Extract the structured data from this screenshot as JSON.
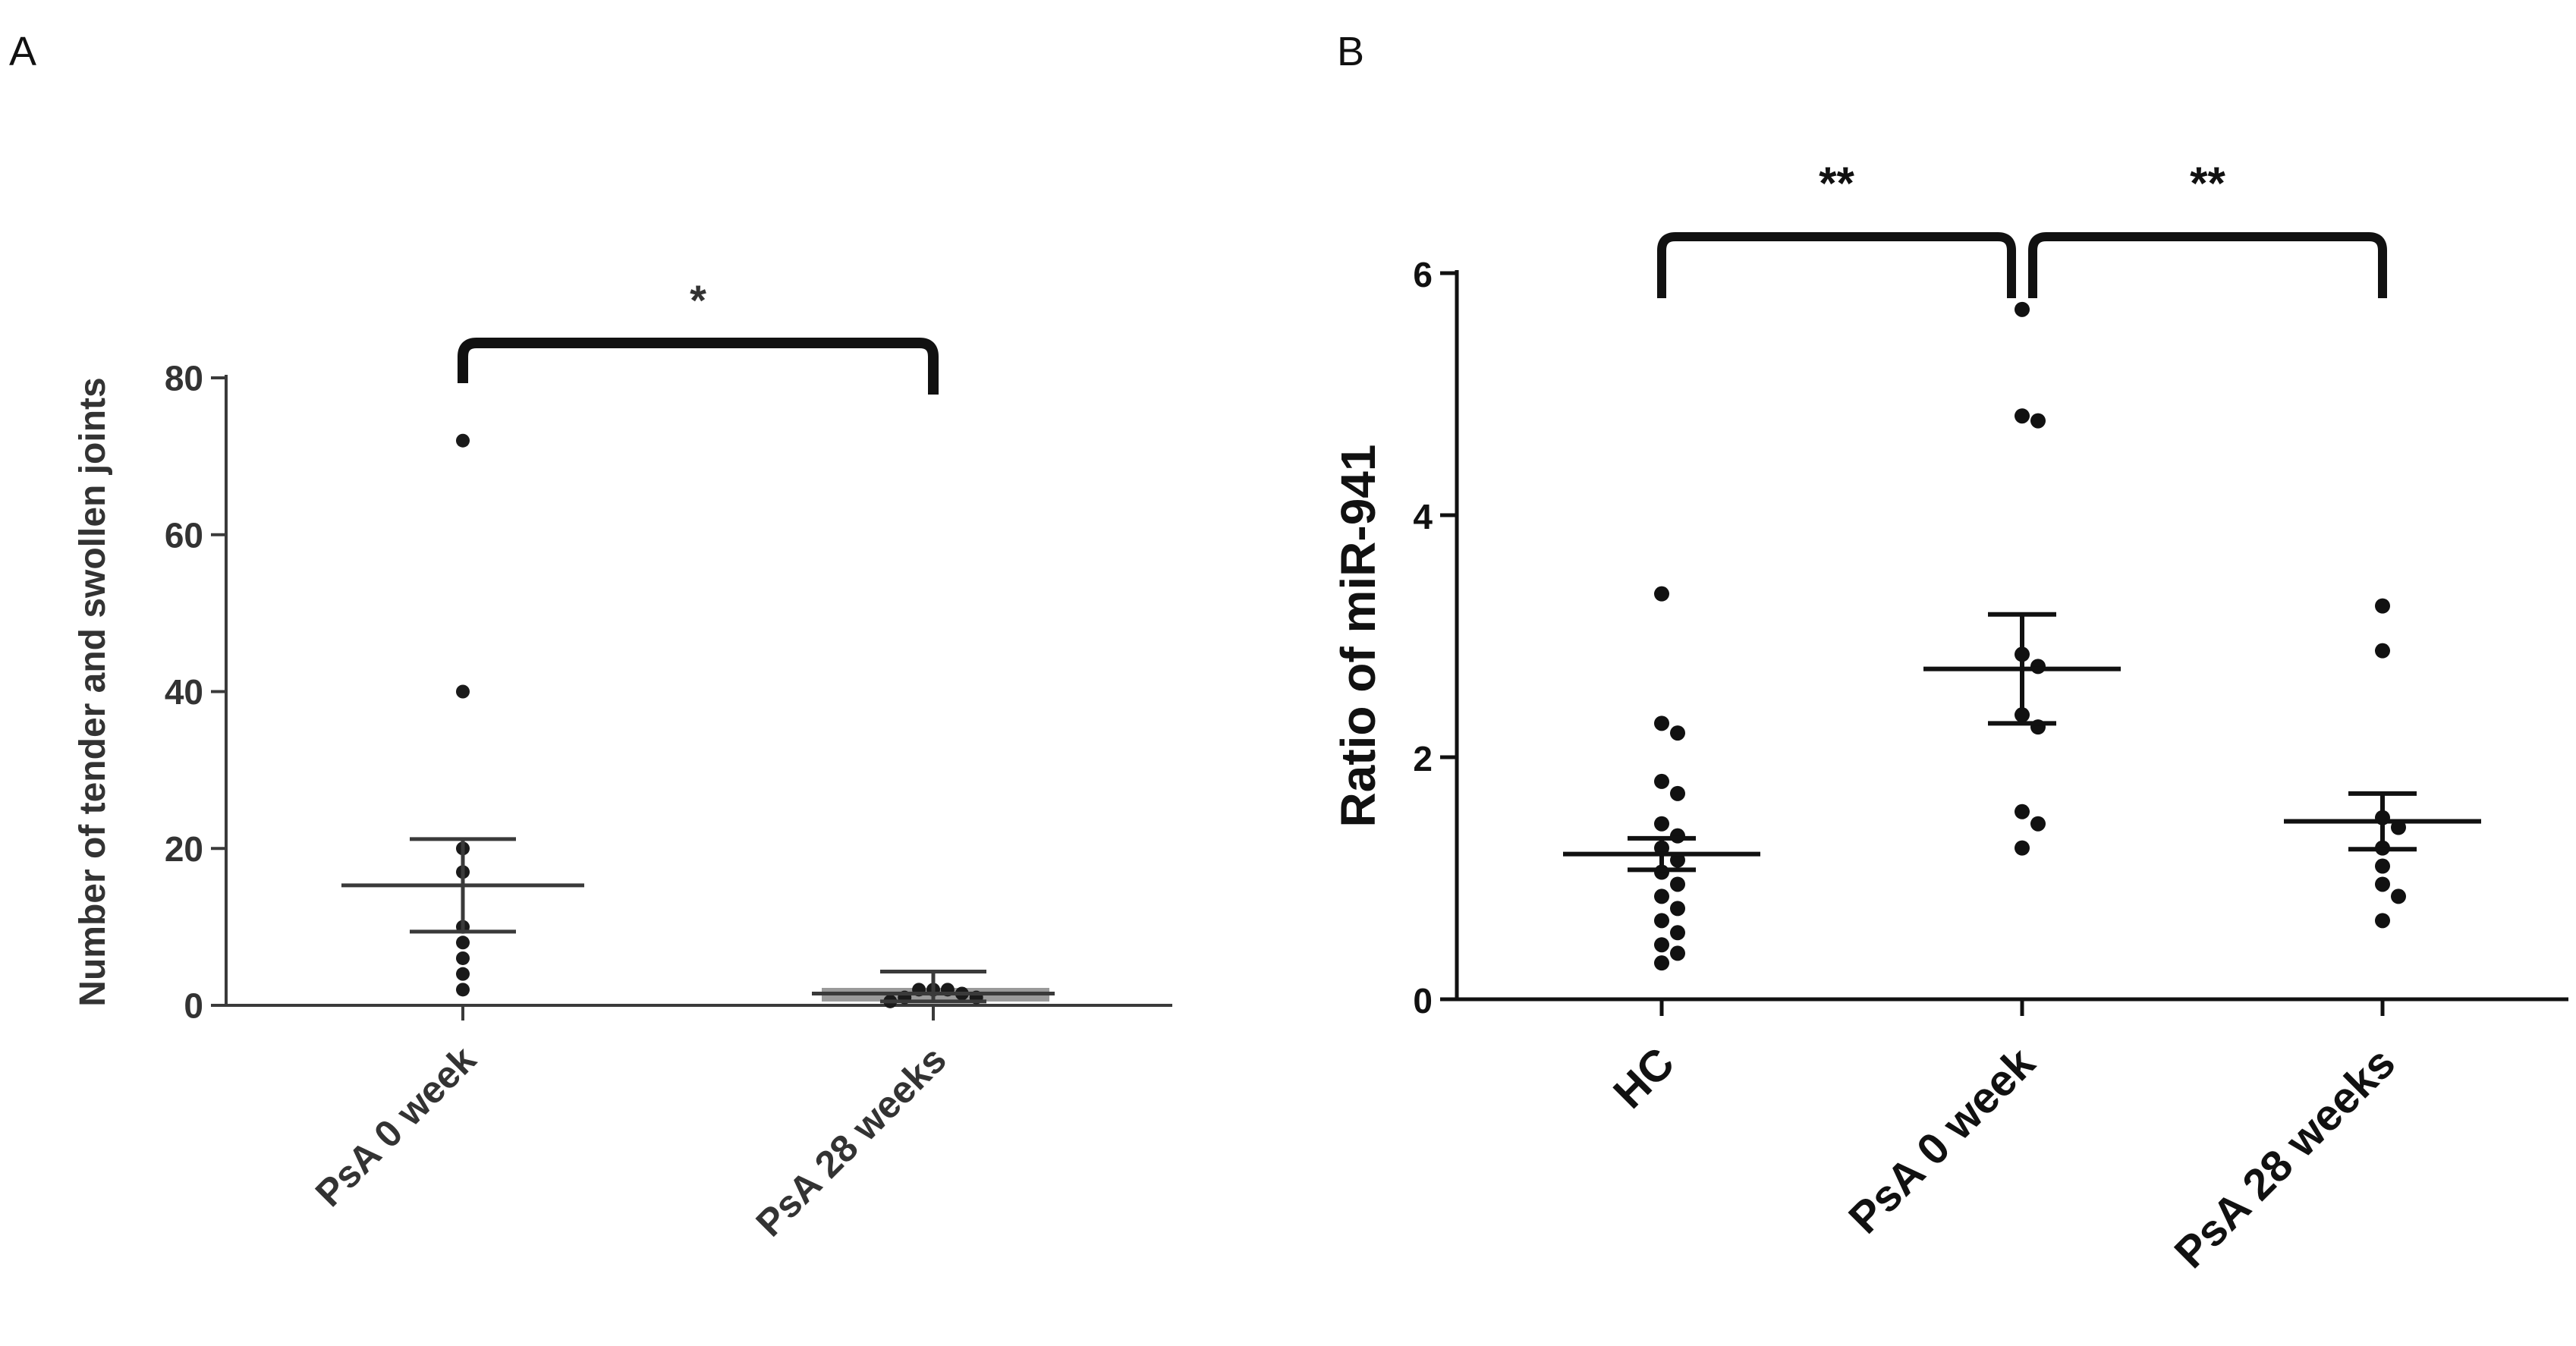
{
  "panel_labels": [
    "A",
    "B"
  ],
  "chart_data": [
    {
      "panel": "A",
      "type": "scatter",
      "ylabel": "Number of tender and swollen joints",
      "categories": [
        "PsA 0 week",
        "PsA 28 weeks"
      ],
      "yticks": [
        "0",
        "20",
        "40",
        "60",
        "80"
      ],
      "ylim": [
        0,
        80
      ],
      "points": [
        {
          "category": "PsA 0 week",
          "values": [
            72,
            40,
            20,
            17,
            10,
            8,
            6,
            4,
            2
          ]
        },
        {
          "category": "PsA 28 weeks",
          "values": [
            2,
            2,
            2,
            1.5,
            1,
            1,
            0.5
          ]
        }
      ],
      "summary": [
        {
          "category": "PsA 0 week",
          "mean": 15.3,
          "sem_low": 9.4,
          "sem_high": 21.2
        },
        {
          "category": "PsA 28 weeks",
          "mean": 1.5,
          "sem_low": 0.5,
          "sem_high": 4.3
        }
      ],
      "significance": [
        {
          "from": "PsA 0 week",
          "to": "PsA 28 weeks",
          "label": "*"
        }
      ],
      "colors": {
        "axis": "#3a3a3a",
        "points": "#1a1a1a",
        "bracket": "#111111",
        "text": "#333333"
      }
    },
    {
      "panel": "B",
      "type": "scatter",
      "ylabel": "Ratio of miR-941",
      "categories": [
        "HC",
        "PsA 0 week",
        "PsA 28 weeks"
      ],
      "yticks": [
        "0",
        "2",
        "4",
        "6"
      ],
      "ylim": [
        0,
        6
      ],
      "points": [
        {
          "category": "HC",
          "values": [
            3.35,
            2.28,
            2.2,
            1.8,
            1.7,
            1.45,
            1.35,
            1.25,
            1.15,
            1.05,
            0.95,
            0.85,
            0.75,
            0.65,
            0.55,
            0.45,
            0.38,
            0.3
          ]
        },
        {
          "category": "PsA 0 week",
          "values": [
            5.7,
            4.82,
            4.78,
            2.85,
            2.75,
            2.35,
            2.25,
            1.55,
            1.45,
            1.25
          ]
        },
        {
          "category": "PsA 28 weeks",
          "values": [
            3.25,
            2.88,
            1.5,
            1.42,
            1.25,
            1.1,
            0.95,
            0.85,
            0.65
          ]
        }
      ],
      "summary": [
        {
          "category": "HC",
          "mean": 1.2,
          "sem_low": 1.07,
          "sem_high": 1.33
        },
        {
          "category": "PsA 0 week",
          "mean": 2.73,
          "sem_low": 2.28,
          "sem_high": 3.18
        },
        {
          "category": "PsA 28 weeks",
          "mean": 1.47,
          "sem_low": 1.24,
          "sem_high": 1.7
        }
      ],
      "significance": [
        {
          "from": "HC",
          "to": "PsA 0 week",
          "label": "**"
        },
        {
          "from": "PsA 0 week",
          "to": "PsA 28 weeks",
          "label": "**"
        }
      ],
      "colors": {
        "axis": "#111111",
        "points": "#111111",
        "bracket": "#111111",
        "text": "#111111"
      }
    }
  ]
}
